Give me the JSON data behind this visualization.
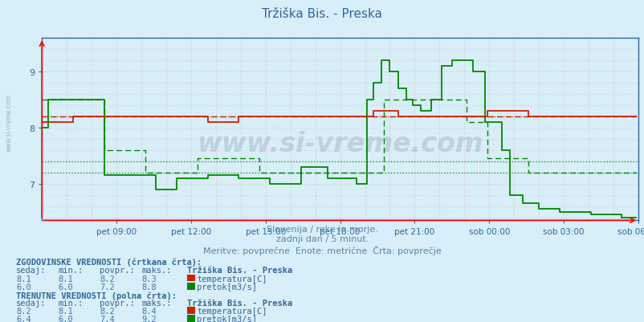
{
  "title": "Tržiška Bis. - Preska",
  "subtitle1": "Slovenija / reke in morje.",
  "subtitle2": "zadnji dan / 5 minut.",
  "subtitle3": "Meritve: povprečne  Enote: metrične  Črta: povprečje",
  "xlabel_ticks": [
    "pet 09:00",
    "pet 12:00",
    "pet 15:00",
    "pet 18:00",
    "pet 21:00",
    "sob 00:00",
    "sob 03:00",
    "sob 06:00"
  ],
  "ylabel_ticks": [
    7,
    8,
    9
  ],
  "ymin": 6.35,
  "ymax": 9.6,
  "xmin": 0,
  "xmax": 288,
  "background_color": "#d8eef8",
  "plot_bg_color": "#d8eef8",
  "title_color": "#336699",
  "subtitle_color": "#5588aa",
  "text_color": "#336699",
  "temp_solid_color": "#cc2200",
  "temp_dashed_color": "#cc2200",
  "flow_solid_color": "#008800",
  "flow_dashed_color": "#008800",
  "grid_red_color": "#dd8888",
  "grid_green_color": "#88cc88",
  "watermark": "www.si-vreme.com",
  "hist_section_title": "ZGODOVINSKE VREDNOSTI (črtkana črta):",
  "curr_section_title": "TRENUTNE VREDNOSTI (polna črta):",
  "hist_headers": [
    "sedaj:",
    "min.:",
    "povpr.:",
    "maks.:",
    "Tržiška Bis. - Preska"
  ],
  "curr_headers": [
    "sedaj:",
    "min.:",
    "povpr.:",
    "maks.:",
    "Tržiška Bis. - Preska"
  ],
  "hist_temp": [
    8.1,
    8.1,
    8.2,
    8.3
  ],
  "hist_flow": [
    6.0,
    6.0,
    7.2,
    8.8
  ],
  "curr_temp": [
    8.2,
    8.1,
    8.2,
    8.4
  ],
  "curr_flow": [
    6.4,
    6.0,
    7.4,
    9.2
  ],
  "temp_avg_hist": 8.2,
  "flow_avg_hist": 7.2,
  "flow_avg_curr": 7.4,
  "n_points": 288
}
